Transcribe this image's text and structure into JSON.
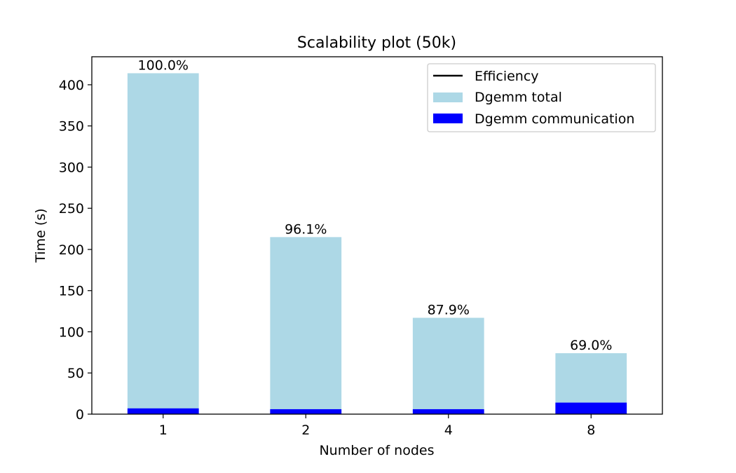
{
  "chart_data": {
    "type": "bar",
    "title": "Scalability plot (50k)",
    "xlabel": "Number of nodes",
    "ylabel": "Time (s)",
    "categories": [
      "1",
      "2",
      "4",
      "8"
    ],
    "series": [
      {
        "name": "Dgemm total",
        "values": [
          414,
          215,
          117,
          74
        ],
        "color": "#add8e6"
      },
      {
        "name": "Dgemm communication",
        "values": [
          7,
          6,
          6,
          14
        ],
        "color": "#0000ff"
      }
    ],
    "efficiency": {
      "name": "Efficiency",
      "labels": [
        "100.0%",
        "96.1%",
        "87.9%",
        "69.0%"
      ],
      "color": "#000000"
    },
    "ylim": [
      0,
      434
    ],
    "yticks": [
      0,
      50,
      100,
      150,
      200,
      250,
      300,
      350,
      400
    ],
    "legend_position": "top-right",
    "grid": false
  }
}
